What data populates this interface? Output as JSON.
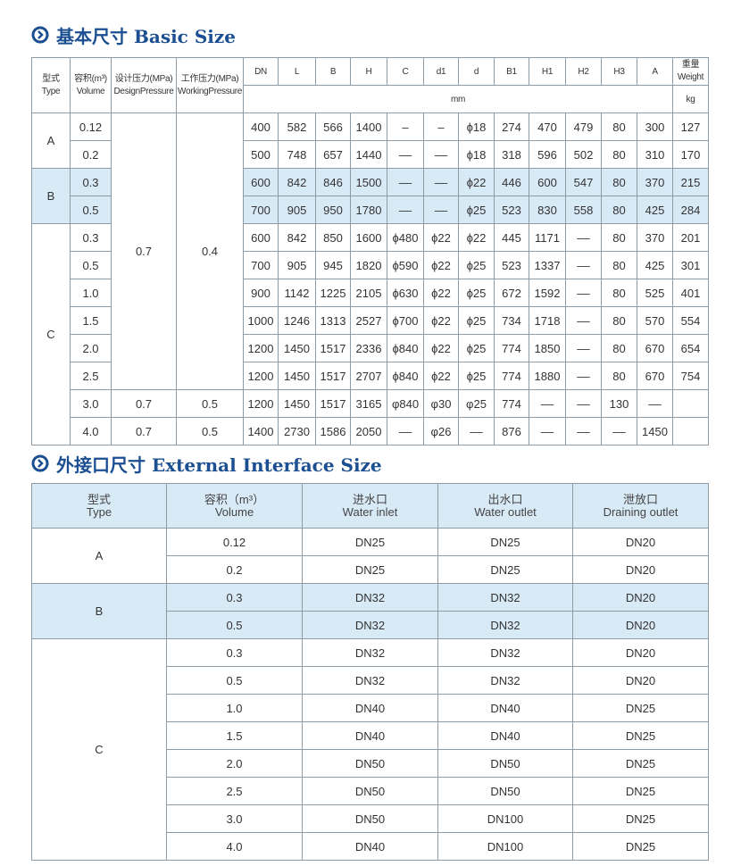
{
  "sections": [
    {
      "title": "基本尺寸 Basic Size",
      "table": {
        "fixed_headers": [
          {
            "zh": "型式",
            "en": "Type"
          },
          {
            "zh": "容积(m³)",
            "en": "Volume"
          },
          {
            "zh": "设计压力(MPa)",
            "en": "DesignPressure"
          },
          {
            "zh": "工作压力(MPa)",
            "en": "WorkingPressure"
          }
        ],
        "dim_headers": [
          "DN",
          "L",
          "B",
          "H",
          "C",
          "d1",
          "d",
          "B1",
          "H1",
          "H2",
          "H3",
          "A"
        ],
        "weight_header": {
          "zh": "重量",
          "en": "Weight"
        },
        "dim_unit": "mm",
        "weight_unit": "kg",
        "rows": [
          {
            "type": "A",
            "volume": "0.12",
            "design_pressure": "0.7",
            "working_pressure": "0.4",
            "cells": [
              "400",
              "582",
              "566",
              "1400",
              "–",
              "–",
              "ϕ18",
              "274",
              "470",
              "479",
              "80",
              "300",
              "127"
            ]
          },
          {
            "volume": "0.2",
            "cells": [
              "500",
              "748",
              "657",
              "1440",
              "––",
              "––",
              "ϕ18",
              "318",
              "596",
              "502",
              "80",
              "310",
              "170"
            ]
          },
          {
            "type": "B",
            "highlight": true,
            "volume": "0.3",
            "cells": [
              "600",
              "842",
              "846",
              "1500",
              "––",
              "––",
              "ϕ22",
              "446",
              "600",
              "547",
              "80",
              "370",
              "215"
            ]
          },
          {
            "highlight": true,
            "volume": "0.5",
            "cells": [
              "700",
              "905",
              "950",
              "1780",
              "––",
              "––",
              "ϕ25",
              "523",
              "830",
              "558",
              "80",
              "425",
              "284"
            ]
          },
          {
            "type": "C",
            "volume": "0.3",
            "cells": [
              "600",
              "842",
              "850",
              "1600",
              "ϕ480",
              "ϕ22",
              "ϕ22",
              "445",
              "1171",
              "––",
              "80",
              "370",
              "201"
            ]
          },
          {
            "volume": "0.5",
            "cells": [
              "700",
              "905",
              "945",
              "1820",
              "ϕ590",
              "ϕ22",
              "ϕ25",
              "523",
              "1337",
              "––",
              "80",
              "425",
              "301"
            ]
          },
          {
            "volume": "1.0",
            "cells": [
              "900",
              "1142",
              "1225",
              "2105",
              "ϕ630",
              "ϕ22",
              "ϕ25",
              "672",
              "1592",
              "––",
              "80",
              "525",
              "401"
            ]
          },
          {
            "volume": "1.5",
            "cells": [
              "1000",
              "1246",
              "1313",
              "2527",
              "ϕ700",
              "ϕ22",
              "ϕ25",
              "734",
              "1718",
              "––",
              "80",
              "570",
              "554"
            ]
          },
          {
            "volume": "2.0",
            "cells": [
              "1200",
              "1450",
              "1517",
              "2336",
              "ϕ840",
              "ϕ22",
              "ϕ25",
              "774",
              "1850",
              "––",
              "80",
              "670",
              "654"
            ]
          },
          {
            "volume": "2.5",
            "cells": [
              "1200",
              "1450",
              "1517",
              "2707",
              "ϕ840",
              "ϕ22",
              "ϕ25",
              "774",
              "1880",
              "––",
              "80",
              "670",
              "754"
            ]
          },
          {
            "volume": "3.0",
            "design_pressure": "0.7",
            "working_pressure": "0.5",
            "cells": [
              "1200",
              "1450",
              "1517",
              "3165",
              "φ840",
              "φ30",
              "φ25",
              "774",
              "––",
              "––",
              "130",
              "––",
              null
            ]
          },
          {
            "volume": "4.0",
            "design_pressure": "0.7",
            "working_pressure": "0.5",
            "cells": [
              "1400",
              "2730",
              "1586",
              "2050",
              "––",
              "φ26",
              "––",
              "876",
              "––",
              "––",
              "––",
              "1450",
              null
            ]
          }
        ]
      }
    },
    {
      "title": "外接口尺寸 External Interface Size",
      "table": {
        "headers": [
          {
            "zh": "型式",
            "en": "Type"
          },
          {
            "zh": "容积（m³）",
            "en": "Volume"
          },
          {
            "zh": "进水口",
            "en": "Water inlet"
          },
          {
            "zh": "出水口",
            "en": "Water outlet"
          },
          {
            "zh": "泄放口",
            "en": "Draining outlet"
          }
        ],
        "rows": [
          {
            "type": "A",
            "volume": "0.12",
            "cells": [
              "DN25",
              "DN25",
              "DN20"
            ]
          },
          {
            "volume": "0.2",
            "cells": [
              "DN25",
              "DN25",
              "DN20"
            ]
          },
          {
            "type": "B",
            "highlight": true,
            "volume": "0.3",
            "cells": [
              "DN32",
              "DN32",
              "DN20"
            ]
          },
          {
            "highlight": true,
            "volume": "0.5",
            "cells": [
              "DN32",
              "DN32",
              "DN20"
            ]
          },
          {
            "type": "C",
            "volume": "0.3",
            "cells": [
              "DN32",
              "DN32",
              "DN20"
            ]
          },
          {
            "volume": "0.5",
            "cells": [
              "DN32",
              "DN32",
              "DN20"
            ]
          },
          {
            "volume": "1.0",
            "cells": [
              "DN40",
              "DN40",
              "DN25"
            ]
          },
          {
            "volume": "1.5",
            "cells": [
              "DN40",
              "DN40",
              "DN25"
            ]
          },
          {
            "volume": "2.0",
            "cells": [
              "DN50",
              "DN50",
              "DN25"
            ]
          },
          {
            "volume": "2.5",
            "cells": [
              "DN50",
              "DN50",
              "DN25"
            ]
          },
          {
            "volume": "3.0",
            "cells": [
              "DN50",
              "DN100",
              "DN25"
            ]
          },
          {
            "volume": "4.0",
            "cells": [
              "DN40",
              "DN100",
              "DN25"
            ]
          }
        ]
      }
    }
  ]
}
